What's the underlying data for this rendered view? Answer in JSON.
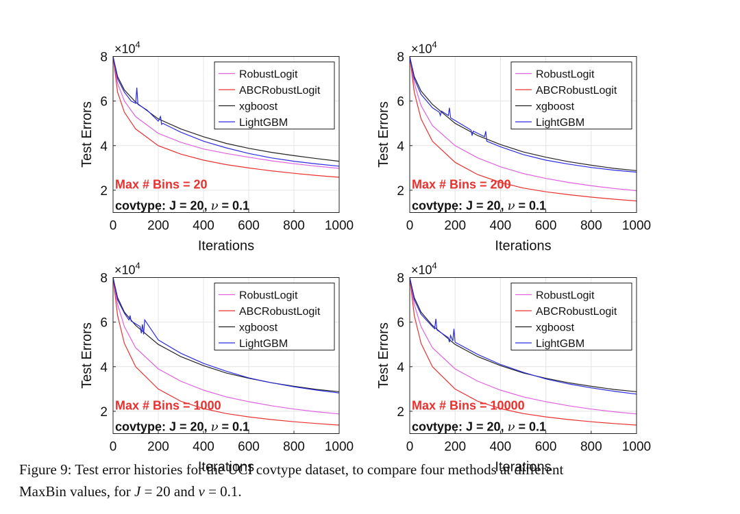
{
  "chart_data": [
    {
      "type": "line",
      "panel": "top-left",
      "xlabel": "Iterations",
      "ylabel": "Test Errors",
      "xlim": [
        0,
        1000
      ],
      "ylim": [
        10000,
        80000
      ],
      "xticks": [
        "0",
        "200",
        "400",
        "600",
        "800",
        "1000"
      ],
      "yticks": [
        "2",
        "4",
        "6",
        "8"
      ],
      "y_exponent_base": "×10",
      "y_exponent_power": "4",
      "annotation_bins": "Max # Bins =  20",
      "annotation_title": "covtype: J = 20, ",
      "annotation_nu": "ν",
      "annotation_value": " = 0.1",
      "series": [
        {
          "name": "RobustLogit",
          "color": "#e060e0",
          "x": [
            0,
            20,
            50,
            100,
            200,
            300,
            400,
            500,
            600,
            700,
            800,
            900,
            1000
          ],
          "values": [
            80000,
            68000,
            60000,
            53000,
            45500,
            41500,
            38500,
            36500,
            34800,
            33200,
            31900,
            30800,
            29800
          ]
        },
        {
          "name": "ABCRobustLogit",
          "color": "#e8312f",
          "x": [
            0,
            20,
            50,
            100,
            200,
            300,
            400,
            500,
            600,
            700,
            800,
            900,
            1000
          ],
          "values": [
            80000,
            64000,
            55000,
            47500,
            40000,
            36200,
            33500,
            31500,
            30000,
            28700,
            27600,
            26600,
            25800
          ]
        },
        {
          "name": "xgboost",
          "color": "#222222",
          "x": [
            0,
            20,
            50,
            100,
            200,
            300,
            400,
            500,
            600,
            700,
            800,
            900,
            1000
          ],
          "values": [
            80000,
            71000,
            65000,
            59500,
            52000,
            47500,
            44000,
            41000,
            38800,
            37000,
            35500,
            34200,
            33000
          ]
        },
        {
          "name": "LightGBM",
          "color": "#2a2ae0",
          "x": [
            0,
            20,
            50,
            80,
            100,
            105,
            110,
            150,
            200,
            210,
            215,
            220,
            300,
            400,
            500,
            600,
            700,
            800,
            900,
            1000
          ],
          "values": [
            80000,
            70000,
            64000,
            60000,
            59000,
            66000,
            58500,
            56000,
            51000,
            53000,
            49500,
            50000,
            46000,
            42000,
            39000,
            36500,
            34500,
            33000,
            31800,
            30800
          ]
        }
      ]
    },
    {
      "type": "line",
      "panel": "top-right",
      "xlabel": "Iterations",
      "ylabel": "Test Errors",
      "xlim": [
        0,
        1000
      ],
      "ylim": [
        10000,
        80000
      ],
      "xticks": [
        "0",
        "200",
        "400",
        "600",
        "800",
        "1000"
      ],
      "yticks": [
        "2",
        "4",
        "6",
        "8"
      ],
      "y_exponent_base": "×10",
      "y_exponent_power": "4",
      "annotation_bins": "Max # Bins =  200",
      "annotation_title": "covtype: J = 20, ",
      "annotation_nu": "ν",
      "annotation_value": " = 0.1",
      "series": [
        {
          "name": "RobustLogit",
          "color": "#e060e0",
          "x": [
            0,
            20,
            50,
            100,
            200,
            300,
            400,
            500,
            600,
            700,
            800,
            900,
            1000
          ],
          "values": [
            80000,
            68000,
            58000,
            49000,
            40000,
            34500,
            30500,
            27500,
            25300,
            23500,
            22000,
            20800,
            19800
          ]
        },
        {
          "name": "ABCRobustLogit",
          "color": "#e8312f",
          "x": [
            0,
            20,
            50,
            100,
            200,
            300,
            400,
            500,
            600,
            700,
            800,
            900,
            1000
          ],
          "values": [
            80000,
            64000,
            52000,
            42000,
            32500,
            27000,
            23500,
            21000,
            19300,
            18000,
            16900,
            16000,
            15200
          ]
        },
        {
          "name": "xgboost",
          "color": "#222222",
          "x": [
            0,
            20,
            50,
            100,
            200,
            300,
            400,
            500,
            600,
            700,
            800,
            900,
            1000
          ],
          "values": [
            80000,
            71000,
            64500,
            58500,
            50000,
            44500,
            40500,
            37200,
            34800,
            32800,
            31200,
            29800,
            28800
          ]
        },
        {
          "name": "LightGBM",
          "color": "#2a2ae0",
          "x": [
            0,
            20,
            50,
            100,
            130,
            135,
            140,
            170,
            175,
            180,
            270,
            275,
            280,
            330,
            335,
            340,
            400,
            500,
            600,
            700,
            800,
            900,
            1000
          ],
          "values": [
            80000,
            70000,
            63000,
            57000,
            55000,
            53500,
            55500,
            53500,
            57000,
            52500,
            47000,
            44500,
            46500,
            44000,
            46500,
            42000,
            39500,
            36000,
            33500,
            31700,
            30200,
            29000,
            28100
          ]
        }
      ]
    },
    {
      "type": "line",
      "panel": "bottom-left",
      "xlabel": "Iterations",
      "ylabel": "Test Errors",
      "xlim": [
        0,
        1000
      ],
      "ylim": [
        10000,
        80000
      ],
      "xticks": [
        "0",
        "200",
        "400",
        "600",
        "800",
        "1000"
      ],
      "yticks": [
        "2",
        "4",
        "6",
        "8"
      ],
      "y_exponent_base": "×10",
      "y_exponent_power": "4",
      "annotation_bins": "Max # Bins =  1000",
      "annotation_title": "covtype: J = 20, ",
      "annotation_nu": "ν",
      "annotation_value": " = 0.1",
      "series": [
        {
          "name": "RobustLogit",
          "color": "#e060e0",
          "x": [
            0,
            20,
            50,
            100,
            200,
            300,
            400,
            500,
            600,
            700,
            800,
            900,
            1000
          ],
          "values": [
            80000,
            68000,
            58000,
            48500,
            39000,
            33500,
            29500,
            26500,
            24300,
            22500,
            21000,
            19800,
            18800
          ]
        },
        {
          "name": "ABCRobustLogit",
          "color": "#e8312f",
          "x": [
            0,
            20,
            50,
            100,
            200,
            300,
            400,
            500,
            600,
            700,
            800,
            900,
            1000
          ],
          "values": [
            80000,
            63000,
            50500,
            40000,
            30000,
            24500,
            21200,
            19000,
            17500,
            16300,
            15300,
            14500,
            13800
          ]
        },
        {
          "name": "xgboost",
          "color": "#222222",
          "x": [
            0,
            20,
            50,
            100,
            200,
            300,
            400,
            500,
            600,
            700,
            800,
            900,
            1000
          ],
          "values": [
            80000,
            71000,
            64500,
            58500,
            50000,
            44500,
            40500,
            37200,
            34800,
            32800,
            31200,
            29800,
            28800
          ]
        },
        {
          "name": "LightGBM",
          "color": "#2a2ae0",
          "x": [
            0,
            20,
            50,
            70,
            75,
            80,
            120,
            125,
            130,
            135,
            140,
            200,
            300,
            400,
            500,
            600,
            700,
            800,
            900,
            1000
          ],
          "values": [
            80000,
            70000,
            64000,
            61000,
            63000,
            60500,
            58000,
            55000,
            59000,
            54500,
            61000,
            52000,
            46000,
            41500,
            38000,
            35000,
            32800,
            31000,
            29500,
            28200
          ]
        }
      ]
    },
    {
      "type": "line",
      "panel": "bottom-right",
      "xlabel": "Iterations",
      "ylabel": "Test Errors",
      "xlim": [
        0,
        1000
      ],
      "ylim": [
        10000,
        80000
      ],
      "xticks": [
        "0",
        "200",
        "400",
        "600",
        "800",
        "1000"
      ],
      "yticks": [
        "2",
        "4",
        "6",
        "8"
      ],
      "y_exponent_base": "×10",
      "y_exponent_power": "4",
      "annotation_bins": "Max # Bins =  10000",
      "annotation_title": "covtype: J = 20, ",
      "annotation_nu": "ν",
      "annotation_value": " = 0.1",
      "series": [
        {
          "name": "RobustLogit",
          "color": "#e060e0",
          "x": [
            0,
            20,
            50,
            100,
            200,
            300,
            400,
            500,
            600,
            700,
            800,
            900,
            1000
          ],
          "values": [
            80000,
            68000,
            58000,
            48500,
            39000,
            33500,
            29500,
            26500,
            24300,
            22500,
            21000,
            19800,
            18800
          ]
        },
        {
          "name": "ABCRobustLogit",
          "color": "#e8312f",
          "x": [
            0,
            20,
            50,
            100,
            200,
            300,
            400,
            500,
            600,
            700,
            800,
            900,
            1000
          ],
          "values": [
            80000,
            63000,
            50500,
            40000,
            30000,
            24500,
            21200,
            19000,
            17500,
            16300,
            15300,
            14500,
            13800
          ]
        },
        {
          "name": "xgboost",
          "color": "#222222",
          "x": [
            0,
            20,
            50,
            100,
            200,
            300,
            400,
            500,
            600,
            700,
            800,
            900,
            1000
          ],
          "values": [
            80000,
            71000,
            64500,
            58500,
            50000,
            44500,
            40500,
            37200,
            34800,
            32800,
            31200,
            29800,
            28800
          ]
        },
        {
          "name": "LightGBM",
          "color": "#2a2ae0",
          "x": [
            0,
            20,
            50,
            100,
            110,
            115,
            120,
            170,
            175,
            180,
            190,
            195,
            200,
            300,
            400,
            500,
            600,
            700,
            800,
            900,
            1000
          ],
          "values": [
            80000,
            70000,
            63500,
            58000,
            57000,
            61500,
            56500,
            53000,
            51000,
            54000,
            51500,
            57000,
            51000,
            45500,
            41000,
            37500,
            34500,
            32300,
            30500,
            29000,
            27700
          ]
        }
      ]
    }
  ],
  "caption": {
    "label": "Figure 9:",
    "line1_text": " Test error histories for the UCI covtype dataset, to compare four methods at different",
    "line2_start": "MaxBin values, for ",
    "J": "J",
    "J_value": " = 20 and ",
    "nu": "ν",
    "nu_value": " = 0.1."
  }
}
